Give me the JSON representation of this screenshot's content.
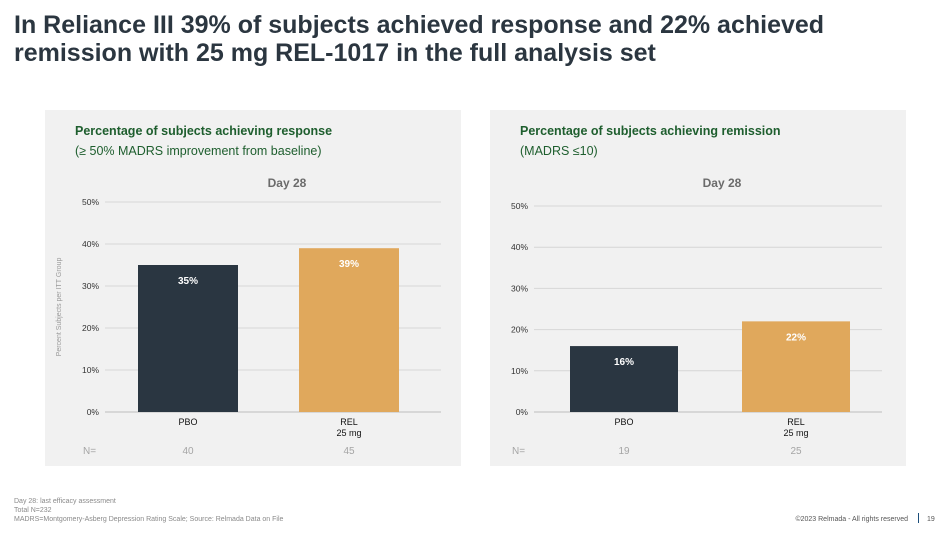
{
  "slide": {
    "title": "In Reliance III 39% of subjects achieved response and 22% achieved remission with 25 mg REL-1017 in the full analysis set"
  },
  "colors": {
    "pbo": "#2a3641",
    "rel": "#e0a85c",
    "panel_bg": "#f1f1f1",
    "subtitle_green": "#1e5e2e",
    "grid": "#d6d6d6"
  },
  "panels": [
    {
      "title": "Percentage of subjects achieving response",
      "subtitle": "(≥ 50% MADRS improvement from baseline)",
      "n_label": "N=",
      "n_values": [
        "40",
        "45"
      ]
    },
    {
      "title": "Percentage of subjects achieving remission",
      "subtitle": "(MADRS ≤10)",
      "n_label": "N=",
      "n_values": [
        "19",
        "25"
      ]
    }
  ],
  "chart_data": [
    {
      "type": "bar",
      "title": "Day 28",
      "categories": [
        "PBO",
        "REL\n25 mg"
      ],
      "values": [
        35,
        39
      ],
      "data_labels": [
        "35%",
        "39%"
      ],
      "ylabel": "Percent Subjects per ITT Group",
      "xlabel": "",
      "ylim": [
        0,
        50
      ],
      "yticks": [
        "0%",
        "10%",
        "20%",
        "30%",
        "40%",
        "50%"
      ],
      "grid": true
    },
    {
      "type": "bar",
      "title": "Day 28",
      "categories": [
        "PBO",
        "REL\n25 mg"
      ],
      "values": [
        16,
        22
      ],
      "data_labels": [
        "16%",
        "22%"
      ],
      "ylabel": "",
      "xlabel": "",
      "ylim": [
        0,
        50
      ],
      "yticks": [
        "0%",
        "10%",
        "20%",
        "30%",
        "40%",
        "50%"
      ],
      "grid": true
    }
  ],
  "footer": {
    "line1": "Day 28: last efficacy assessment",
    "line2": "Total N=232",
    "line3": "MADRS=Montgomery-Asberg Depression Rating Scale; Source: Relmada Data on File",
    "copyright": "©2023 Relmada - All rights reserved",
    "page": "19"
  }
}
